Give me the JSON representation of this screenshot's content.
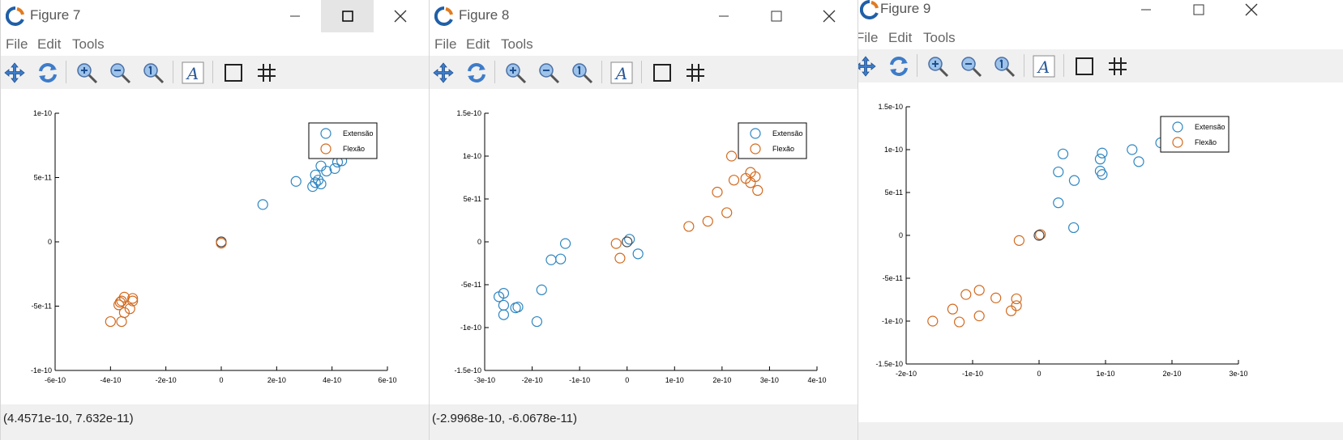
{
  "menu": [
    "File",
    "Edit",
    "Tools"
  ],
  "colors": {
    "extensao": "#2e86c1",
    "flexao": "#d2691e",
    "neutral": "#444444"
  },
  "toolbar_icons": [
    "pan-icon",
    "rotate-icon",
    "zoom-in-icon",
    "zoom-out-icon",
    "zoom-reset-icon",
    "text-tool-icon",
    "box-tool-icon",
    "grid-icon"
  ],
  "legend": {
    "series1": "Extensão",
    "series2": "Flexão"
  },
  "figures": [
    {
      "title": "Figure 7",
      "status": "(4.4571e-10, 7.632e-11)",
      "maximize_highlight": true,
      "chart_data": {
        "type": "scatter",
        "xlim": [
          -6e-10,
          6e-10
        ],
        "ylim": [
          -1e-10,
          1e-10
        ],
        "xticks": [
          -6e-10,
          -4e-10,
          -2e-10,
          0,
          2e-10,
          4e-10,
          6e-10
        ],
        "xticklabels": [
          "-6e-10",
          "-4e-10",
          "-2e-10",
          "0",
          "2e-10",
          "4e-10",
          "6e-10"
        ],
        "yticks": [
          -1e-10,
          -5e-11,
          0,
          5e-11,
          1e-10
        ],
        "yticklabels": [
          "-1e-10",
          "-5e-11",
          "0",
          "5e-11",
          "1e-10"
        ],
        "legend_position": "top-right",
        "series": [
          {
            "name": "Extensão",
            "color": "#2e86c1",
            "points": [
              [
                1.5e-10,
                2.9e-11
              ],
              [
                2.7e-10,
                4.7e-11
              ],
              [
                3.3e-10,
                4.3e-11
              ],
              [
                3.4e-10,
                4.6e-11
              ],
              [
                3.5e-10,
                4.8e-11
              ],
              [
                3.4e-10,
                5.2e-11
              ],
              [
                3.6e-10,
                4.5e-11
              ],
              [
                3.6e-10,
                5.9e-11
              ],
              [
                3.8e-10,
                5.5e-11
              ],
              [
                4.1e-10,
                5.7e-11
              ],
              [
                4.2e-10,
                6.2e-11
              ],
              [
                4.35e-10,
                6.3e-11
              ]
            ]
          },
          {
            "name": "Flexão",
            "color": "#d2691e",
            "points": [
              [
                -4e-10,
                -6.2e-11
              ],
              [
                -3.6e-10,
                -6.2e-11
              ],
              [
                -3.5e-10,
                -5.5e-11
              ],
              [
                -3.3e-10,
                -5.2e-11
              ],
              [
                -3.7e-10,
                -4.9e-11
              ],
              [
                -3.6e-10,
                -4.6e-11
              ],
              [
                -3.5e-10,
                -4.3e-11
              ],
              [
                -3.2e-10,
                -4.6e-11
              ],
              [
                -3.2e-10,
                -4.4e-11
              ],
              [
                -3.65e-10,
                -4.7e-11
              ]
            ]
          },
          {
            "name": "",
            "color": "#444444",
            "points": [
              [
                0,
                0
              ]
            ]
          },
          {
            "name": "",
            "color": "#d2691e",
            "points": [
              [
                0,
                -1e-12
              ]
            ]
          }
        ]
      }
    },
    {
      "title": "Figure 8",
      "status": "(-2.9968e-10, -6.0678e-11)",
      "maximize_highlight": false,
      "chart_data": {
        "type": "scatter",
        "xlim": [
          -3e-10,
          4e-10
        ],
        "ylim": [
          -1.5e-10,
          1.5e-10
        ],
        "xticks": [
          -3e-10,
          -2e-10,
          -1e-10,
          0,
          1e-10,
          2e-10,
          3e-10,
          4e-10
        ],
        "xticklabels": [
          "-3e-10",
          "-2e-10",
          "-1e-10",
          "0",
          "1e-10",
          "2e-10",
          "3e-10",
          "4e-10"
        ],
        "yticks": [
          -1.5e-10,
          -1e-10,
          -5e-11,
          0,
          5e-11,
          1e-10,
          1.5e-10
        ],
        "yticklabels": [
          "-1.5e-10",
          "-1e-10",
          "-5e-11",
          "0",
          "5e-11",
          "1e-10",
          "1.5e-10"
        ],
        "legend_position": "top-right",
        "series": [
          {
            "name": "Extensão",
            "color": "#2e86c1",
            "points": [
              [
                -2.7e-10,
                -6.4e-11
              ],
              [
                -2.6e-10,
                -6e-11
              ],
              [
                -2.6e-10,
                -7.4e-11
              ],
              [
                -2.6e-10,
                -8.5e-11
              ],
              [
                -2.3e-10,
                -7.6e-11
              ],
              [
                -2.35e-10,
                -7.7e-11
              ],
              [
                -1.9e-10,
                -9.3e-11
              ],
              [
                -1.8e-10,
                -5.6e-11
              ],
              [
                -1.6e-10,
                -2.1e-11
              ],
              [
                -1.4e-10,
                -2e-11
              ],
              [
                -1.3e-10,
                -2e-12
              ],
              [
                5e-12,
                3e-12
              ],
              [
                2.3e-11,
                -1.4e-11
              ]
            ]
          },
          {
            "name": "Flexão",
            "color": "#d2691e",
            "points": [
              [
                -2.3e-11,
                -2e-12
              ],
              [
                -1.5e-11,
                -1.9e-11
              ],
              [
                1.3e-10,
                1.8e-11
              ],
              [
                1.7e-10,
                2.4e-11
              ],
              [
                1.9e-10,
                5.8e-11
              ],
              [
                2.1e-10,
                3.4e-11
              ],
              [
                2.2e-10,
                1e-10
              ],
              [
                2.25e-10,
                7.2e-11
              ],
              [
                2.5e-10,
                7.4e-11
              ],
              [
                2.6e-10,
                6.9e-11
              ],
              [
                2.6e-10,
                8.1e-11
              ],
              [
                2.7e-10,
                7.6e-11
              ],
              [
                2.75e-10,
                6e-11
              ]
            ]
          },
          {
            "name": "",
            "color": "#444444",
            "points": [
              [
                0,
                0
              ]
            ]
          }
        ]
      }
    },
    {
      "title": "Figure 9",
      "status": "",
      "maximize_highlight": false,
      "chart_data": {
        "type": "scatter",
        "xlim": [
          -2e-10,
          3e-10
        ],
        "ylim": [
          -1.5e-10,
          1.5e-10
        ],
        "xticks": [
          -2e-10,
          -1e-10,
          0,
          1e-10,
          2e-10,
          3e-10
        ],
        "xticklabels": [
          "-2e-10",
          "-1e-10",
          "0",
          "1e-10",
          "2e-10",
          "3e-10"
        ],
        "yticks": [
          -1.5e-10,
          -1e-10,
          -5e-11,
          0,
          5e-11,
          1e-10,
          1.5e-10
        ],
        "yticklabels": [
          "-1.5e-10",
          "-1e-10",
          "-5e-11",
          "0",
          "5e-11",
          "1e-10",
          "1.5e-10"
        ],
        "legend_position": "top-right",
        "series": [
          {
            "name": "Extensão",
            "color": "#2e86c1",
            "points": [
              [
                2.9e-11,
                3.8e-11
              ],
              [
                5.2e-11,
                9e-12
              ],
              [
                2.9e-11,
                7.4e-11
              ],
              [
                3.6e-11,
                9.5e-11
              ],
              [
                5.3e-11,
                6.4e-11
              ],
              [
                9.2e-11,
                7.5e-11
              ],
              [
                9.2e-11,
                8.9e-11
              ],
              [
                9.5e-11,
                9.6e-11
              ],
              [
                9.5e-11,
                7.1e-11
              ],
              [
                1.4e-10,
                1e-10
              ],
              [
                1.5e-10,
                8.6e-11
              ],
              [
                1.83e-10,
                1.08e-10
              ]
            ]
          },
          {
            "name": "Flexão",
            "color": "#d2691e",
            "points": [
              [
                -1.6e-10,
                -1e-10
              ],
              [
                -1.3e-10,
                -8.6e-11
              ],
              [
                -1.2e-10,
                -1.01e-10
              ],
              [
                -1.1e-10,
                -6.9e-11
              ],
              [
                -9e-11,
                -6.4e-11
              ],
              [
                -9e-11,
                -9.4e-11
              ],
              [
                -6.5e-11,
                -7.3e-11
              ],
              [
                -3e-11,
                -6e-12
              ],
              [
                -4.2e-11,
                -8.8e-11
              ],
              [
                -3.4e-11,
                -7.4e-11
              ],
              [
                -3.4e-11,
                -8.2e-11
              ],
              [
                2e-12,
                1e-12
              ]
            ]
          },
          {
            "name": "",
            "color": "#444444",
            "points": [
              [
                0,
                0
              ]
            ]
          }
        ]
      }
    }
  ]
}
